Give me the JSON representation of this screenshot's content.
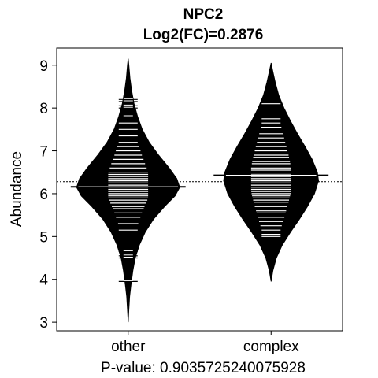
{
  "chart_data": {
    "type": "beanplot",
    "title": "NPC2",
    "subtitle": "Log2(FC)=0.2876",
    "ylabel": "Abundance",
    "xlabel": "P-value: 0.9035725240075928",
    "ylim": [
      2.8,
      9.4
    ],
    "yticks": [
      3,
      4,
      5,
      6,
      7,
      8,
      9
    ],
    "overall_mean": 6.28,
    "colors": {
      "bean": "#000000",
      "lines": "#ffffff",
      "background": "#ffffff"
    },
    "groups": [
      {
        "label": "other",
        "mean": 6.16,
        "min": 3.0,
        "max": 9.15,
        "density": [
          [
            3.0,
            0.0
          ],
          [
            3.3,
            0.012
          ],
          [
            3.6,
            0.025
          ],
          [
            3.9,
            0.05
          ],
          [
            4.2,
            0.08
          ],
          [
            4.5,
            0.12
          ],
          [
            4.8,
            0.19
          ],
          [
            5.1,
            0.29
          ],
          [
            5.4,
            0.43
          ],
          [
            5.7,
            0.62
          ],
          [
            5.95,
            0.8
          ],
          [
            6.15,
            0.88
          ],
          [
            6.35,
            0.83
          ],
          [
            6.6,
            0.7
          ],
          [
            6.9,
            0.52
          ],
          [
            7.2,
            0.36
          ],
          [
            7.5,
            0.24
          ],
          [
            7.8,
            0.16
          ],
          [
            8.1,
            0.1
          ],
          [
            8.4,
            0.06
          ],
          [
            8.7,
            0.03
          ],
          [
            9.0,
            0.012
          ],
          [
            9.15,
            0.0
          ]
        ],
        "points": [
          3.95,
          4.5,
          4.55,
          4.65,
          5.15,
          5.3,
          5.45,
          5.55,
          5.65,
          5.7,
          5.78,
          5.85,
          5.9,
          5.95,
          6.0,
          6.05,
          6.1,
          6.15,
          6.2,
          6.25,
          6.3,
          6.35,
          6.4,
          6.45,
          6.5,
          6.6,
          6.7,
          6.8,
          6.9,
          7.0,
          7.1,
          7.2,
          7.35,
          7.5,
          7.65,
          7.8,
          8.0,
          8.05,
          8.15,
          8.2
        ]
      },
      {
        "label": "complex",
        "mean": 6.43,
        "min": 3.95,
        "max": 9.05,
        "density": [
          [
            3.95,
            0.0
          ],
          [
            4.2,
            0.03
          ],
          [
            4.5,
            0.09
          ],
          [
            4.8,
            0.19
          ],
          [
            5.1,
            0.33
          ],
          [
            5.4,
            0.48
          ],
          [
            5.7,
            0.62
          ],
          [
            6.0,
            0.74
          ],
          [
            6.3,
            0.81
          ],
          [
            6.5,
            0.79
          ],
          [
            6.8,
            0.7
          ],
          [
            7.1,
            0.58
          ],
          [
            7.4,
            0.45
          ],
          [
            7.7,
            0.33
          ],
          [
            8.0,
            0.22
          ],
          [
            8.3,
            0.13
          ],
          [
            8.6,
            0.07
          ],
          [
            8.85,
            0.03
          ],
          [
            9.05,
            0.0
          ]
        ],
        "points": [
          5.0,
          5.05,
          5.15,
          5.25,
          5.35,
          5.45,
          5.55,
          5.6,
          5.7,
          5.8,
          5.85,
          5.9,
          5.95,
          6.0,
          6.05,
          6.1,
          6.15,
          6.2,
          6.25,
          6.3,
          6.35,
          6.4,
          6.45,
          6.55,
          6.6,
          6.7,
          6.75,
          6.85,
          6.9,
          7.0,
          7.1,
          7.2,
          7.3,
          7.4,
          7.55,
          7.65,
          7.75,
          8.1
        ]
      }
    ]
  }
}
